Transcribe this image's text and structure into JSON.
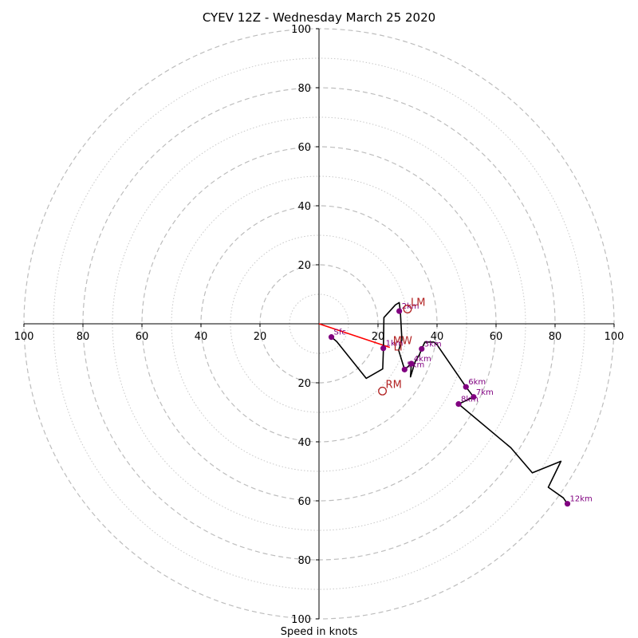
{
  "chart_data": {
    "type": "hodograph",
    "title": "CYEV 12Z - Wednesday March 25 2020",
    "xlabel": "Speed in knots",
    "range": [
      0,
      100
    ],
    "ring_major": [
      20,
      40,
      60,
      80,
      100
    ],
    "ring_minor": [
      10,
      30,
      50,
      70,
      90
    ],
    "tick_labels": {
      "top": [
        "20",
        "40",
        "60",
        "80",
        "100"
      ],
      "bottom": [
        "20",
        "40",
        "60",
        "80",
        "100"
      ],
      "left": [
        "100",
        "80",
        "60",
        "40",
        "20"
      ],
      "right": [
        "20",
        "40",
        "60",
        "80",
        "100"
      ]
    },
    "trace": [
      [
        4.2,
        -4.5
      ],
      [
        6.0,
        -6.0
      ],
      [
        16.0,
        -18.5
      ],
      [
        21.6,
        -15.3
      ],
      [
        21.8,
        -9.2
      ],
      [
        22.0,
        2.1
      ],
      [
        25.9,
        6.4
      ],
      [
        27.2,
        7.2
      ],
      [
        27.6,
        4.0
      ],
      [
        27.6,
        3.6
      ],
      [
        28.1,
        -5.5
      ],
      [
        27.0,
        -9.0
      ],
      [
        29.0,
        -15.5
      ],
      [
        31.3,
        -13.5
      ],
      [
        31.0,
        -18.0
      ],
      [
        32.6,
        -12.8
      ],
      [
        34.0,
        -10.5
      ],
      [
        34.8,
        -8.5
      ],
      [
        35.9,
        -6.2
      ],
      [
        38.9,
        -6.2
      ],
      [
        40.0,
        -7.1
      ],
      [
        49.8,
        -21.4
      ],
      [
        52.4,
        -24.8
      ],
      [
        47.3,
        -27.2
      ],
      [
        65.0,
        -42.0
      ],
      [
        72.3,
        -50.5
      ],
      [
        82.0,
        -46.6
      ],
      [
        77.7,
        -55.4
      ],
      [
        82.8,
        -59.0
      ],
      [
        84.2,
        -61.0
      ]
    ],
    "series_color": "#000000",
    "height_markers": [
      {
        "label": "Sfc",
        "u": 4.2,
        "v": -4.5
      },
      {
        "label": "1km",
        "u": 21.8,
        "v": -8.3
      },
      {
        "label": "2km",
        "u": 27.2,
        "v": 4.3
      },
      {
        "label": "3km",
        "u": 34.8,
        "v": -8.5
      },
      {
        "label": "4km",
        "u": 31.3,
        "v": -13.5
      },
      {
        "label": "5km",
        "u": 29.0,
        "v": -15.5
      },
      {
        "label": "6km",
        "u": 49.8,
        "v": -21.4
      },
      {
        "label": "7km",
        "u": 52.4,
        "v": -24.8
      },
      {
        "label": "8km",
        "u": 47.3,
        "v": -27.2
      },
      {
        "label": "12km",
        "u": 84.2,
        "v": -61.0
      }
    ],
    "marker_color": "#800080",
    "storm_motion": [
      {
        "label": "LM",
        "u": 30.0,
        "v": 5.0
      },
      {
        "label": "MW",
        "u": 24.0,
        "v": -8.0
      },
      {
        "label": "RM",
        "u": 21.5,
        "v": -22.8
      }
    ],
    "storm_color": "#b22222",
    "shear_vector": {
      "from": [
        0,
        0
      ],
      "to": [
        24.0,
        -8.0
      ],
      "color": "#ff0000"
    },
    "overlap_label": {
      "label": "LI",
      "u": 25.3,
      "v": -9.0
    },
    "grid": true
  }
}
